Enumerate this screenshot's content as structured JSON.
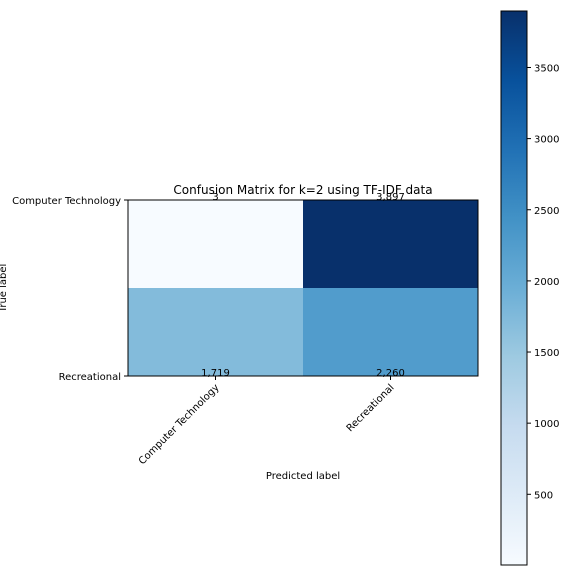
{
  "chart_data": {
    "type": "heatmap",
    "title": "Confusion Matrix for k=2 using TF-IDF data",
    "xlabel": "Predicted label",
    "ylabel": "True label",
    "row_labels": [
      "Computer Technology",
      "Recreational"
    ],
    "col_labels": [
      "Computer Technology",
      "Recreational"
    ],
    "values": [
      [
        3,
        3897
      ],
      [
        1719,
        2260
      ]
    ],
    "cell_labels": [
      [
        "3",
        "3,897"
      ],
      [
        "1,719",
        "2,260"
      ]
    ],
    "colormap": "Blues",
    "colorbar": {
      "range": [
        3,
        3897
      ],
      "ticks": [
        500,
        1000,
        1500,
        2000,
        2500,
        3000,
        3500
      ]
    },
    "colors": {
      "text_dark": "#000000",
      "text_light": "#ffffff"
    }
  }
}
